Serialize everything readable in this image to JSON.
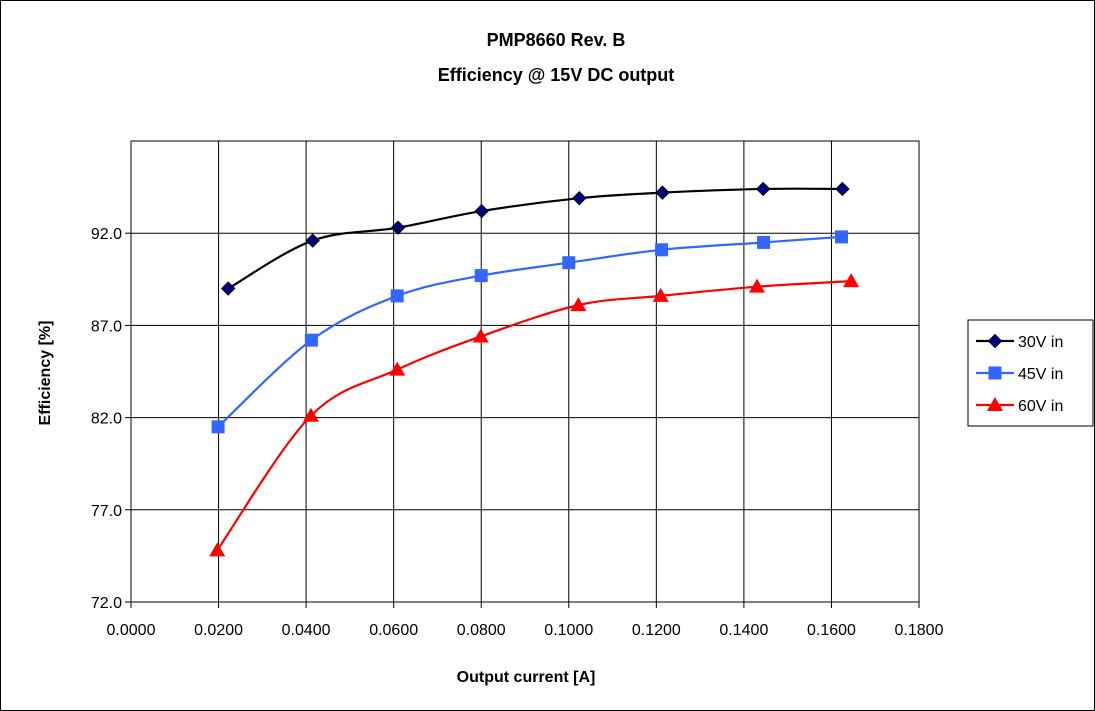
{
  "chart_data": {
    "type": "line",
    "title": "PMP8660 Rev. B",
    "subtitle": "Efficiency @ 15V DC output",
    "xlabel": "Output current [A]",
    "ylabel": "Efficiency [%]",
    "xlim": [
      0,
      0.18
    ],
    "ylim": [
      72,
      97
    ],
    "xticks": [
      "0.0000",
      "0.0200",
      "0.0400",
      "0.0600",
      "0.0800",
      "0.1000",
      "0.1200",
      "0.1400",
      "0.1600",
      "0.1800"
    ],
    "yticks": [
      "72.0",
      "77.0",
      "82.0",
      "87.0",
      "92.0"
    ],
    "grid": true,
    "legend_position": "right",
    "series": [
      {
        "name": "30V in",
        "color": "#000000",
        "marker_color": "#000080",
        "marker": "diamond",
        "x": [
          0.0222,
          0.0415,
          0.061,
          0.0801,
          0.1024,
          0.1214,
          0.1444,
          0.1625
        ],
        "y": [
          89.0,
          91.6,
          92.3,
          93.2,
          93.9,
          94.2,
          94.4,
          94.4
        ]
      },
      {
        "name": "45V in",
        "color": "#3366FF",
        "marker_color": "#3366FF",
        "marker": "square",
        "x": [
          0.0199,
          0.0412,
          0.0608,
          0.08,
          0.1,
          0.1212,
          0.1445,
          0.1623
        ],
        "y": [
          81.5,
          86.2,
          88.6,
          89.7,
          90.4,
          91.1,
          91.5,
          91.8
        ]
      },
      {
        "name": "60V in",
        "color": "#FF0000",
        "marker_color": "#FF0000",
        "marker": "triangle",
        "x": [
          0.0197,
          0.0411,
          0.0608,
          0.0799,
          0.1022,
          0.121,
          0.143,
          0.1645
        ],
        "y": [
          74.8,
          82.1,
          84.6,
          86.4,
          88.1,
          88.6,
          89.1,
          89.4
        ]
      }
    ]
  }
}
